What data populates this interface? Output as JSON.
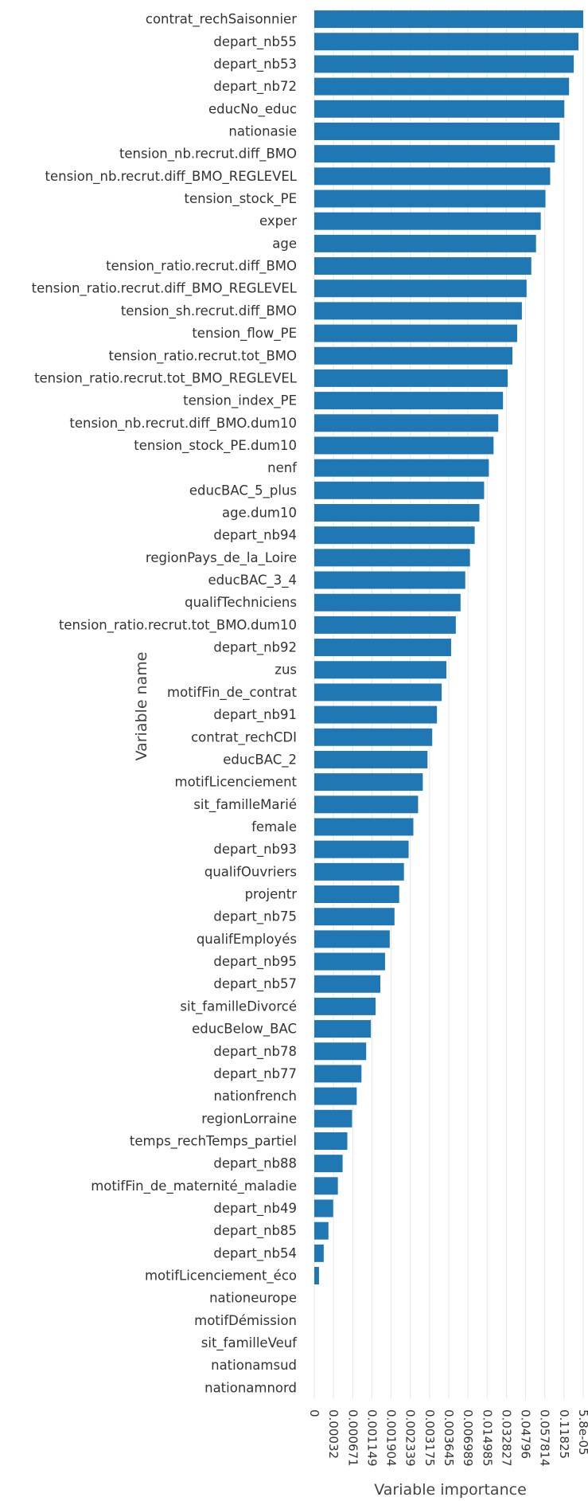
{
  "chart_data": {
    "type": "bar",
    "orientation": "horizontal",
    "categories": [
      "contrat_rechSaisonnier",
      "depart_nb55",
      "depart_nb53",
      "depart_nb72",
      "educNo_educ",
      "nationasie",
      "tension_nb.recrut.diff_BMO",
      "tension_nb.recrut.diff_BMO_REGLEVEL",
      "tension_stock_PE",
      "exper",
      "age",
      "tension_ratio.recrut.diff_BMO",
      "tension_ratio.recrut.diff_BMO_REGLEVEL",
      "tension_sh.recrut.diff_BMO",
      "tension_flow_PE",
      "tension_ratio.recrut.tot_BMO",
      "tension_ratio.recrut.tot_BMO_REGLEVEL",
      "tension_index_PE",
      "tension_nb.recrut.diff_BMO.dum10",
      "tension_stock_PE.dum10",
      "nenf",
      "educBAC_5_plus",
      "age.dum10",
      "depart_nb94",
      "regionPays_de_la_Loire",
      "educBAC_3_4",
      "qualifTechniciens",
      "tension_ratio.recrut.tot_BMO.dum10",
      "depart_nb92",
      "zus",
      "motifFin_de_contrat",
      "depart_nb91",
      "contrat_rechCDI",
      "educBAC_2",
      "motifLicenciement",
      "sit_familleMarié",
      "female",
      "depart_nb93",
      "qualifOuvriers",
      "projentr",
      "depart_nb75",
      "qualifEmployés",
      "depart_nb95",
      "depart_nb57",
      "sit_familleDivorcé",
      "educBelow_BAC",
      "depart_nb78",
      "depart_nb77",
      "nationfrench",
      "regionLorraine",
      "temps_rechTemps_partiel",
      "depart_nb88",
      "motifFin_de_maternité_maladie",
      "depart_nb49",
      "depart_nb85",
      "depart_nb54",
      "motifLicenciement_éco",
      "nationeurope",
      "motifDémission",
      "sit_familleVeuf",
      "nationamsud",
      "nationamnord"
    ],
    "ranks": [
      57,
      56,
      55,
      54,
      53,
      52,
      51,
      50,
      49,
      48,
      47,
      46,
      45,
      44,
      43,
      42,
      41,
      40,
      39,
      38,
      37,
      36,
      35,
      34,
      33,
      32,
      31,
      30,
      29,
      28,
      27,
      26,
      25,
      24,
      23,
      22,
      21,
      20,
      19,
      18,
      17,
      16,
      15,
      14,
      13,
      12,
      11,
      10,
      9,
      8,
      7,
      6,
      5,
      4,
      3,
      2,
      1,
      0,
      0,
      0,
      0,
      0
    ],
    "x_ticks": [
      "0",
      "0.00032",
      "0.000671",
      "0.001149",
      "0.001904",
      "0.002339",
      "0.003175",
      "0.003645",
      "0.006989",
      "0.014985",
      "0.032827",
      "0.04796",
      "0.057814",
      "0.11825",
      "5.8e-05"
    ],
    "xlabel": "Variable importance",
    "ylabel": "Variable name",
    "grid": true,
    "bar_color": "#1f77b4",
    "grid_color": "#e6e6e6",
    "text_color": "#333333"
  }
}
